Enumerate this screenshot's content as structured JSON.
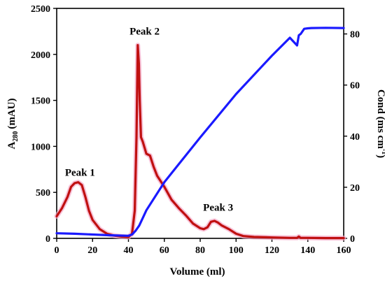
{
  "chart_data": {
    "type": "line",
    "title": "",
    "xlabel": "Volume (ml)",
    "ylabel_left": "A280 (mAU)",
    "ylabel_left_main": "A",
    "ylabel_left_sub": "280",
    "ylabel_left_unit": "(mAU)",
    "ylabel_right": "Cond (ms cm-1)",
    "ylabel_right_main": "Cond (ms cm",
    "ylabel_right_sup": "-1",
    "ylabel_right_close": ")",
    "xlim": [
      0,
      160
    ],
    "ylim_left": [
      0,
      2500
    ],
    "ylim_right": [
      0,
      90
    ],
    "x_ticks": [
      "0",
      "20",
      "40",
      "60",
      "80",
      "100",
      "120",
      "140",
      "160"
    ],
    "y_left_ticks": [
      "0",
      "500",
      "1000",
      "1500",
      "2000",
      "2500"
    ],
    "y_right_ticks": [
      "0",
      "20",
      "40",
      "60",
      "80"
    ],
    "grid": false,
    "series": [
      {
        "axis": "left",
        "color": "#c01010",
        "x": [
          0,
          3,
          6,
          8,
          10,
          12,
          14,
          16,
          18,
          20,
          24,
          28,
          32,
          36,
          40,
          42,
          43.5,
          44.5,
          45.2,
          45.8,
          46.3,
          47,
          48,
          50,
          52,
          54,
          56,
          60,
          64,
          68,
          72,
          76,
          80,
          82,
          84,
          86,
          88,
          90,
          92,
          96,
          100,
          104,
          110,
          120,
          130,
          134,
          135,
          136,
          137,
          140,
          150,
          160
        ],
        "y": [
          240,
          330,
          450,
          560,
          600,
          610,
          580,
          450,
          300,
          200,
          100,
          50,
          30,
          20,
          15,
          50,
          300,
          1100,
          2100,
          1900,
          1500,
          1100,
          1050,
          920,
          900,
          780,
          680,
          560,
          420,
          330,
          250,
          160,
          110,
          100,
          120,
          180,
          190,
          170,
          140,
          100,
          50,
          25,
          15,
          10,
          5,
          5,
          20,
          5,
          5,
          5,
          3,
          3
        ]
      },
      {
        "axis": "right",
        "color": "#1a1aff",
        "x": [
          0,
          10,
          20,
          30,
          40,
          42,
          44,
          46,
          48,
          50,
          60,
          80,
          100,
          120,
          130,
          134,
          135,
          136,
          138,
          140,
          142,
          150,
          160
        ],
        "y": [
          2,
          1.8,
          1.5,
          1.2,
          1.0,
          1.5,
          3,
          5,
          8,
          11,
          22,
          39.5,
          56.5,
          71.5,
          78.5,
          75.5,
          79.5,
          80,
          82,
          82.2,
          82.3,
          82.4,
          82.3
        ]
      }
    ],
    "annotations": [
      {
        "text": "Peak 1",
        "x": 13,
        "y": 680
      },
      {
        "text": "Peak 2",
        "x": 49,
        "y": 2215
      },
      {
        "text": "Peak 3",
        "x": 90,
        "y": 300
      }
    ]
  }
}
